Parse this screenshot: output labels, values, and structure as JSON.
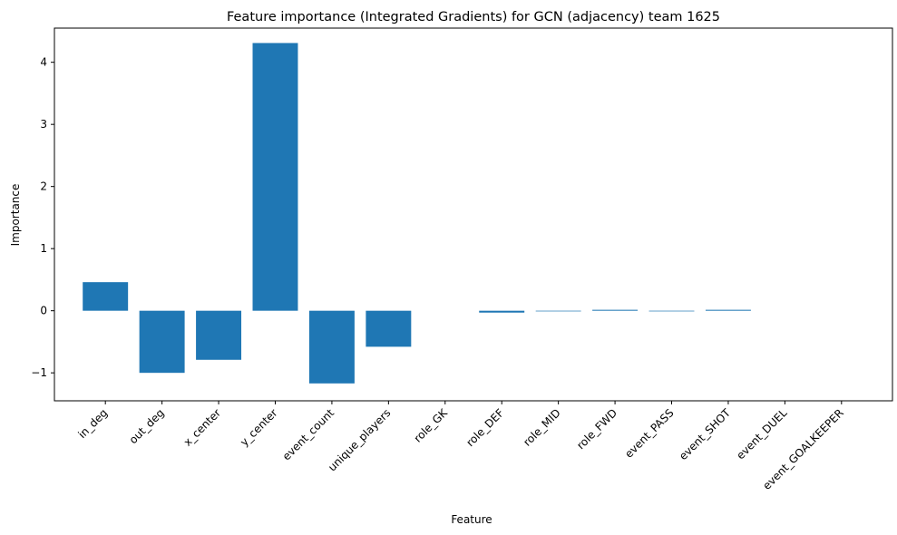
{
  "chart_data": {
    "type": "bar",
    "title": "Feature importance (Integrated Gradients) for GCN (adjacency) team 1625",
    "xlabel": "Feature",
    "ylabel": "Importance",
    "categories": [
      "in_deg",
      "out_deg",
      "x_center",
      "y_center",
      "event_count",
      "unique_players",
      "role_GK",
      "role_DEF",
      "role_MID",
      "role_FWD",
      "event_PASS",
      "event_SHOT",
      "event_DUEL",
      "event_GOALKEEPER"
    ],
    "values": [
      0.46,
      -1.0,
      -0.79,
      4.31,
      -1.17,
      -0.58,
      0.0,
      -0.03,
      -0.01,
      0.015,
      -0.01,
      0.015,
      0.0,
      0.0
    ],
    "ylim": [
      -1.45,
      4.55
    ],
    "yticks": [
      -1,
      0,
      1,
      2,
      3,
      4
    ],
    "ytick_labels": [
      "−1",
      "0",
      "1",
      "2",
      "3",
      "4"
    ],
    "grid": false,
    "legend": "none",
    "bar_color": "#1f77b4"
  }
}
